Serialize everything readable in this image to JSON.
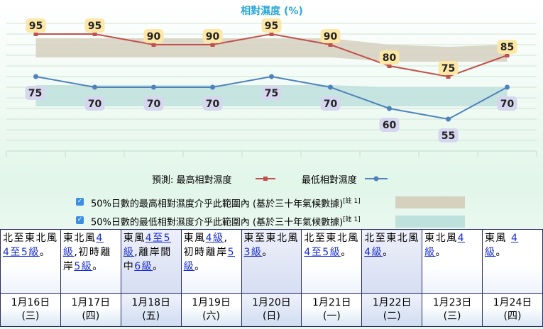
{
  "chart_data": {
    "type": "line",
    "title": "相對濕度 (%)",
    "ylim": [
      40,
      100
    ],
    "categories": [
      "1月16日",
      "1月17日",
      "1月18日",
      "1月19日",
      "1月20日",
      "1月21日",
      "1月22日",
      "1月23日",
      "1月24日"
    ],
    "series": [
      {
        "name": "最高相對濕度",
        "values": [
          95,
          95,
          90,
          90,
          95,
          90,
          80,
          75,
          85
        ],
        "color": "#c0504d"
      },
      {
        "name": "最低相對濕度",
        "values": [
          75,
          70,
          70,
          70,
          75,
          70,
          60,
          55,
          70
        ],
        "color": "#4f81bd"
      }
    ],
    "bands": [
      {
        "name": "50%日數的最高相對濕度介乎此範圍內",
        "values": [
          [
            84,
            93
          ],
          [
            84,
            93
          ],
          [
            84,
            93
          ],
          [
            84,
            93
          ],
          [
            84,
            93
          ],
          [
            84,
            93
          ],
          [
            82,
            90
          ],
          [
            82,
            89
          ],
          [
            82,
            90
          ]
        ],
        "color": "#d6d0bf"
      },
      {
        "name": "50%日數的最低相對濕度介乎此範圍內",
        "values": [
          [
            61,
            71
          ],
          [
            61,
            71
          ],
          [
            61,
            71
          ],
          [
            61,
            71
          ],
          [
            61,
            71
          ],
          [
            61,
            71
          ],
          [
            61,
            70
          ],
          [
            61,
            70
          ],
          [
            61,
            70
          ]
        ],
        "color": "#bfe1dc"
      }
    ],
    "grid": true
  },
  "legend": {
    "prefix": "預測:",
    "max_label": "最高相對濕度",
    "min_label": "最低相對濕度",
    "band_max_text": "50%日數的最高相對濕度介乎此範圍內 (基於三十年氣候數據)",
    "band_min_text": "50%日數的最低相對濕度介乎此範圍內 (基於三十年氣候數據)",
    "note": "[註 1]"
  },
  "days": [
    {
      "date": "1月16日",
      "weekday": "(三)",
      "wind": [
        {
          "t": "北至東北風 "
        },
        {
          "t": "4至5級",
          "link": true
        },
        {
          "t": "。"
        }
      ],
      "shade": false
    },
    {
      "date": "1月17日",
      "weekday": "(四)",
      "wind": [
        {
          "t": "東北風"
        },
        {
          "t": "4級",
          "link": true
        },
        {
          "t": ",初時離岸"
        },
        {
          "t": "5級",
          "link": true
        },
        {
          "t": "。"
        }
      ],
      "shade": false
    },
    {
      "date": "1月18日",
      "weekday": "(五)",
      "wind": [
        {
          "t": "東風"
        },
        {
          "t": "4至5級",
          "link": true
        },
        {
          "t": ",離岸間中"
        },
        {
          "t": "6級",
          "link": true
        },
        {
          "t": "。"
        }
      ],
      "shade": true
    },
    {
      "date": "1月19日",
      "weekday": "(六)",
      "wind": [
        {
          "t": "東風"
        },
        {
          "t": "4級",
          "link": true
        },
        {
          "t": ",初時離岸"
        },
        {
          "t": "5級",
          "link": true
        },
        {
          "t": "。"
        }
      ],
      "shade": false
    },
    {
      "date": "1月20日",
      "weekday": "(日)",
      "wind": [
        {
          "t": "東至東北風"
        },
        {
          "t": "3級",
          "link": true
        },
        {
          "t": "。"
        }
      ],
      "shade": true
    },
    {
      "date": "1月21日",
      "weekday": "(一)",
      "wind": [
        {
          "t": "北至東北風 "
        },
        {
          "t": "4至5級",
          "link": true
        },
        {
          "t": "。"
        }
      ],
      "shade": false
    },
    {
      "date": "1月22日",
      "weekday": "(二)",
      "wind": [
        {
          "t": "北至東北風"
        },
        {
          "t": "4級",
          "link": true
        },
        {
          "t": "。"
        }
      ],
      "shade": true
    },
    {
      "date": "1月23日",
      "weekday": "(三)",
      "wind": [
        {
          "t": "東北風"
        },
        {
          "t": "4級",
          "link": true
        },
        {
          "t": "。"
        }
      ],
      "shade": false
    },
    {
      "date": "1月24日",
      "weekday": "(四)",
      "wind": [
        {
          "t": "東風 "
        },
        {
          "t": "4級",
          "link": true
        },
        {
          "t": "。"
        }
      ],
      "shade": false
    }
  ]
}
